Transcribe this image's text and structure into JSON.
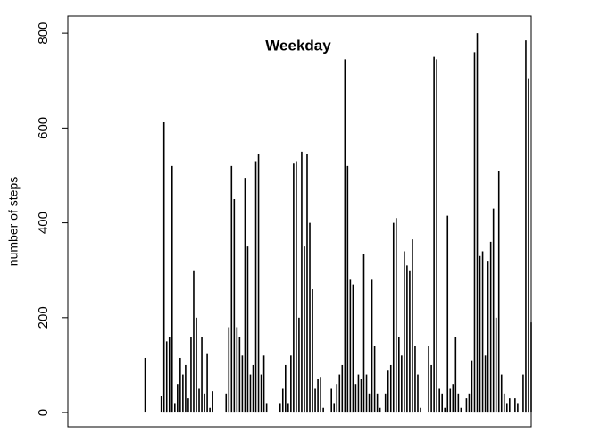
{
  "chart_data": {
    "type": "bar",
    "title": "Weekday",
    "y_label": "number of steps",
    "values": [
      0,
      0,
      0,
      0,
      0,
      0,
      0,
      0,
      0,
      0,
      0,
      0,
      0,
      0,
      0,
      0,
      0,
      0,
      0,
      0,
      0,
      0,
      115,
      0,
      0,
      0,
      0,
      0,
      35,
      612,
      150,
      160,
      520,
      20,
      60,
      115,
      80,
      100,
      30,
      160,
      300,
      200,
      50,
      160,
      40,
      125,
      10,
      45,
      0,
      0,
      0,
      0,
      40,
      180,
      520,
      450,
      180,
      160,
      120,
      495,
      350,
      80,
      100,
      530,
      545,
      80,
      120,
      20,
      0,
      0,
      0,
      0,
      20,
      50,
      100,
      20,
      120,
      525,
      530,
      200,
      550,
      350,
      545,
      400,
      260,
      50,
      70,
      75,
      10,
      0,
      0,
      50,
      20,
      60,
      80,
      100,
      745,
      520,
      280,
      270,
      60,
      80,
      70,
      335,
      80,
      40,
      280,
      140,
      40,
      10,
      0,
      40,
      90,
      100,
      400,
      410,
      160,
      120,
      340,
      310,
      300,
      365,
      140,
      80,
      10,
      0,
      0,
      140,
      100,
      750,
      745,
      50,
      40,
      10,
      415,
      50,
      60,
      160,
      40,
      10,
      0,
      30,
      40,
      110,
      760,
      800,
      330,
      340,
      120,
      320,
      360,
      430,
      200,
      510,
      80,
      40,
      20,
      30,
      0,
      30,
      20,
      0,
      80,
      785,
      705,
      190
    ],
    "color": "#000000",
    "ylim": [
      -30,
      836
    ],
    "yticks": [
      0,
      200,
      400,
      600,
      800
    ]
  }
}
